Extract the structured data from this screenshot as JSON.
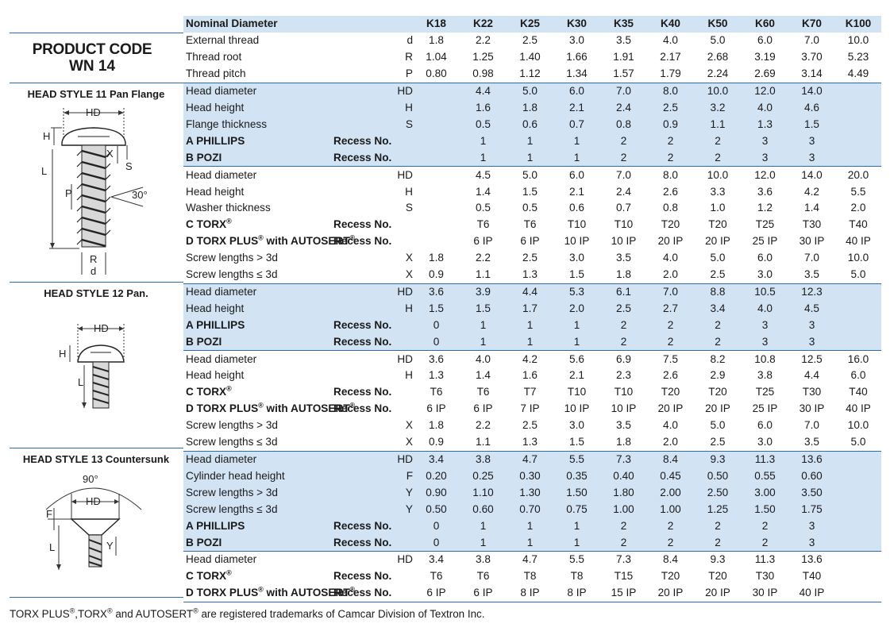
{
  "product": {
    "line1": "PRODUCT CODE",
    "line2": "WN 14"
  },
  "head_styles": {
    "hs11": "HEAD STYLE 11 Pan Flange",
    "hs12": "HEAD STYLE 12 Pan.",
    "hs13": "HEAD STYLE 13 Countersunk"
  },
  "drawing_labels": {
    "hd": "HD",
    "h": "H",
    "x": "X",
    "s": "S",
    "l": "L",
    "p": "P",
    "angle30": "30°",
    "r": "R",
    "d": "d",
    "f": "F",
    "y": "Y",
    "angle90": "90°"
  },
  "header": {
    "label": "Nominal Diameter",
    "columns": [
      "K18",
      "K22",
      "K25",
      "K30",
      "K35",
      "K40",
      "K50",
      "K60",
      "K70",
      "K100"
    ]
  },
  "rows": [
    {
      "name": "External thread",
      "sym": "d",
      "vals": [
        "1.8",
        "2.2",
        "2.5",
        "3.0",
        "3.5",
        "4.0",
        "5.0",
        "6.0",
        "7.0",
        "10.0"
      ]
    },
    {
      "name": "Thread root",
      "sym": "R",
      "vals": [
        "1.04",
        "1.25",
        "1.40",
        "1.66",
        "1.91",
        "2.17",
        "2.68",
        "3.19",
        "3.70",
        "5.23"
      ]
    },
    {
      "name": "Thread pitch",
      "sym": "P",
      "vals": [
        "0.80",
        "0.98",
        "1.12",
        "1.34",
        "1.57",
        "1.79",
        "2.24",
        "2.69",
        "3.14",
        "4.49"
      ]
    },
    {
      "name": "Head diameter",
      "sym": "HD",
      "vals": [
        "",
        "4.4",
        "5.0",
        "6.0",
        "7.0",
        "8.0",
        "10.0",
        "12.0",
        "14.0",
        ""
      ]
    },
    {
      "name": "Head height",
      "sym": "H",
      "vals": [
        "",
        "1.6",
        "1.8",
        "2.1",
        "2.4",
        "2.5",
        "3.2",
        "4.0",
        "4.6",
        ""
      ]
    },
    {
      "name": "Flange thickness",
      "sym": "S",
      "vals": [
        "",
        "0.5",
        "0.6",
        "0.7",
        "0.8",
        "0.9",
        "1.1",
        "1.3",
        "1.5",
        ""
      ]
    },
    {
      "name": "A PHILLIPS",
      "sym": "Recess No.",
      "vals": [
        "",
        "1",
        "1",
        "1",
        "2",
        "2",
        "2",
        "3",
        "3",
        ""
      ]
    },
    {
      "name": "B POZI",
      "sym": "Recess No.",
      "vals": [
        "",
        "1",
        "1",
        "1",
        "2",
        "2",
        "2",
        "3",
        "3",
        ""
      ]
    },
    {
      "name": "Head diameter",
      "sym": "HD",
      "vals": [
        "",
        "4.5",
        "5.0",
        "6.0",
        "7.0",
        "8.0",
        "10.0",
        "12.0",
        "14.0",
        "20.0"
      ]
    },
    {
      "name": "Head height",
      "sym": "H",
      "vals": [
        "",
        "1.4",
        "1.5",
        "2.1",
        "2.4",
        "2.6",
        "3.3",
        "3.6",
        "4.2",
        "5.5"
      ]
    },
    {
      "name": "Washer thickness",
      "sym": "S",
      "vals": [
        "",
        "0.5",
        "0.5",
        "0.6",
        "0.7",
        "0.8",
        "1.0",
        "1.2",
        "1.4",
        "2.0"
      ]
    },
    {
      "name": "C TORX",
      "sup": "®",
      "sym": "Recess No.",
      "vals": [
        "",
        "T6",
        "T6",
        "T10",
        "T10",
        "T20",
        "T20",
        "T25",
        "T30",
        "T40"
      ]
    },
    {
      "name": "D TORX PLUS",
      "sup": "®",
      "name2": " with AUTOSERT",
      "sup2": "®",
      "sym": "Recess No.",
      "vals": [
        "",
        "6 IP",
        "6 IP",
        "10 IP",
        "10 IP",
        "20 IP",
        "20 IP",
        "25 IP",
        "30 IP",
        "40 IP"
      ]
    },
    {
      "name": "Screw lengths > 3d",
      "sym": "X",
      "vals": [
        "1.8",
        "2.2",
        "2.5",
        "3.0",
        "3.5",
        "4.0",
        "5.0",
        "6.0",
        "7.0",
        "10.0"
      ]
    },
    {
      "name": "Screw lengths ≤ 3d",
      "sym": "X",
      "vals": [
        "0.9",
        "1.1",
        "1.3",
        "1.5",
        "1.8",
        "2.0",
        "2.5",
        "3.0",
        "3.5",
        "5.0"
      ]
    },
    {
      "name": "Head diameter",
      "sym": "HD",
      "vals": [
        "3.6",
        "3.9",
        "4.4",
        "5.3",
        "6.1",
        "7.0",
        "8.8",
        "10.5",
        "12.3",
        ""
      ]
    },
    {
      "name": "Head height",
      "sym": "H",
      "vals": [
        "1.5",
        "1.5",
        "1.7",
        "2.0",
        "2.5",
        "2.7",
        "3.4",
        "4.0",
        "4.5",
        ""
      ]
    },
    {
      "name": "A PHILLIPS",
      "sym": "Recess No.",
      "vals": [
        "0",
        "1",
        "1",
        "1",
        "2",
        "2",
        "2",
        "3",
        "3",
        ""
      ]
    },
    {
      "name": "B POZI",
      "sym": "Recess No.",
      "vals": [
        "0",
        "1",
        "1",
        "1",
        "2",
        "2",
        "2",
        "3",
        "3",
        ""
      ]
    },
    {
      "name": "Head diameter",
      "sym": "HD",
      "vals": [
        "3.6",
        "4.0",
        "4.2",
        "5.6",
        "6.9",
        "7.5",
        "8.2",
        "10.8",
        "12.5",
        "16.0"
      ]
    },
    {
      "name": "Head height",
      "sym": "H",
      "vals": [
        "1.3",
        "1.4",
        "1.6",
        "2.1",
        "2.3",
        "2.6",
        "2.9",
        "3.8",
        "4.4",
        "6.0"
      ]
    },
    {
      "name": "C TORX",
      "sup": "®",
      "sym": "Recess No.",
      "vals": [
        "T6",
        "T6",
        "T7",
        "T10",
        "T10",
        "T20",
        "T20",
        "T25",
        "T30",
        "T40"
      ]
    },
    {
      "name": "D TORX PLUS",
      "sup": "®",
      "name2": " with AUTOSERT",
      "sup2": "®",
      "sym": "Recess No.",
      "vals": [
        "6 IP",
        "6 IP",
        "7 IP",
        "10 IP",
        "10 IP",
        "20 IP",
        "20 IP",
        "25 IP",
        "30 IP",
        "40 IP"
      ]
    },
    {
      "name": "Screw lengths > 3d",
      "sym": "X",
      "vals": [
        "1.8",
        "2.2",
        "2.5",
        "3.0",
        "3.5",
        "4.0",
        "5.0",
        "6.0",
        "7.0",
        "10.0"
      ]
    },
    {
      "name": "Screw lengths ≤ 3d",
      "sym": "X",
      "vals": [
        "0.9",
        "1.1",
        "1.3",
        "1.5",
        "1.8",
        "2.0",
        "2.5",
        "3.0",
        "3.5",
        "5.0"
      ]
    },
    {
      "name": "Head diameter",
      "sym": "HD",
      "vals": [
        "3.4",
        "3.8",
        "4.7",
        "5.5",
        "7.3",
        "8.4",
        "9.3",
        "11.3",
        "13.6",
        ""
      ]
    },
    {
      "name": "Cylinder head height",
      "sym": "F",
      "vals": [
        "0.20",
        "0.25",
        "0.30",
        "0.35",
        "0.40",
        "0.45",
        "0.50",
        "0.55",
        "0.60",
        ""
      ]
    },
    {
      "name": "Screw lengths > 3d",
      "sym": "Y",
      "vals": [
        "0.90",
        "1.10",
        "1.30",
        "1.50",
        "1.80",
        "2.00",
        "2.50",
        "3.00",
        "3.50",
        ""
      ]
    },
    {
      "name": "Screw lengths ≤ 3d",
      "sym": "Y",
      "vals": [
        "0.50",
        "0.60",
        "0.70",
        "0.75",
        "1.00",
        "1.00",
        "1.25",
        "1.50",
        "1.75",
        ""
      ]
    },
    {
      "name": "A PHILLIPS",
      "sym": "Recess No.",
      "vals": [
        "0",
        "1",
        "1",
        "1",
        "2",
        "2",
        "2",
        "2",
        "3",
        ""
      ]
    },
    {
      "name": "B POZI",
      "sym": "Recess No.",
      "vals": [
        "0",
        "1",
        "1",
        "1",
        "2",
        "2",
        "2",
        "2",
        "3",
        ""
      ]
    },
    {
      "name": "Head diameter",
      "sym": "HD",
      "vals": [
        "3.4",
        "3.8",
        "4.7",
        "5.5",
        "7.3",
        "8.4",
        "9.3",
        "11.3",
        "13.6",
        ""
      ]
    },
    {
      "name": "C TORX",
      "sup": "®",
      "sym": "Recess No.",
      "vals": [
        "T6",
        "T6",
        "T8",
        "T8",
        "T15",
        "T20",
        "T20",
        "T30",
        "T40",
        ""
      ]
    },
    {
      "name": "D TORX PLUS",
      "sup": "®",
      "name2": " with AUTOSERT",
      "sup2": "®",
      "sym": "Recess No.",
      "vals": [
        "6 IP",
        "6 IP",
        "8 IP",
        "8 IP",
        "15 IP",
        "20 IP",
        "20 IP",
        "30 IP",
        "40 IP",
        ""
      ]
    }
  ],
  "footnote": {
    "p1": "TORX PLUS",
    "r1": "®",
    "p2": ",TORX",
    "r2": "®",
    "p3": " and AUTOSERT",
    "r3": "®",
    "p4": " are registered trademarks of Camcar Division of Textron Inc."
  }
}
